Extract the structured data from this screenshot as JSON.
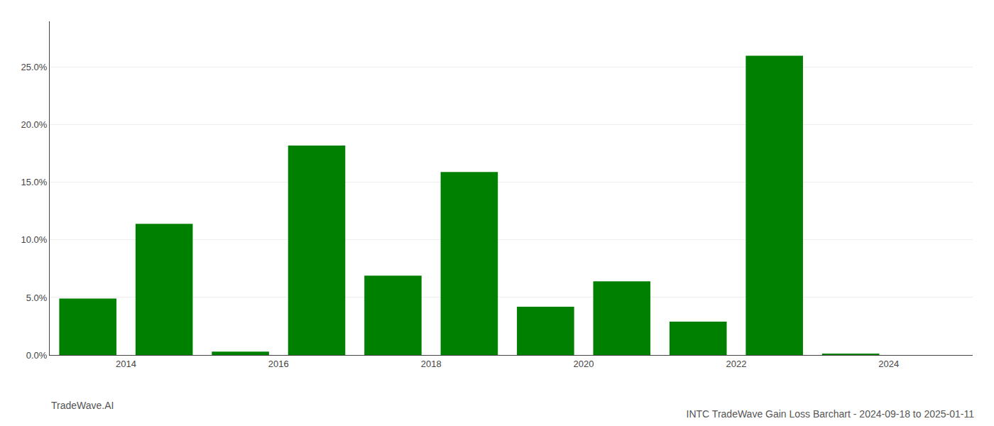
{
  "chart_data": {
    "type": "bar",
    "title": "INTC TradeWave Gain Loss Barchart - 2024-09-18 to 2025-01-11",
    "annotations": [
      "TradeWave.AI"
    ],
    "x": [
      2013,
      2014,
      2015,
      2016,
      2017,
      2018,
      2019,
      2020,
      2021,
      2022,
      2023,
      2024
    ],
    "values": [
      0.049,
      0.114,
      0.003,
      0.182,
      0.069,
      0.159,
      0.042,
      0.064,
      0.029,
      0.26,
      0.001,
      0.0
    ],
    "color": "#008000",
    "xlim": [
      2012.5,
      2024.6
    ],
    "xticks": [
      {
        "value": 2013.5,
        "label": "2014"
      },
      {
        "value": 2015.5,
        "label": "2016"
      },
      {
        "value": 2017.5,
        "label": "2018"
      },
      {
        "value": 2019.5,
        "label": "2020"
      },
      {
        "value": 2021.5,
        "label": "2022"
      },
      {
        "value": 2023.5,
        "label": "2024"
      }
    ],
    "ylim": [
      0,
      0.29
    ],
    "yticks": [
      {
        "value": 0.0,
        "label": "0.0%"
      },
      {
        "value": 0.05,
        "label": "5.0%"
      },
      {
        "value": 0.1,
        "label": "10.0%"
      },
      {
        "value": 0.15,
        "label": "15.0%"
      },
      {
        "value": 0.2,
        "label": "20.0%"
      },
      {
        "value": 0.25,
        "label": "25.0%"
      }
    ],
    "grid": true
  }
}
